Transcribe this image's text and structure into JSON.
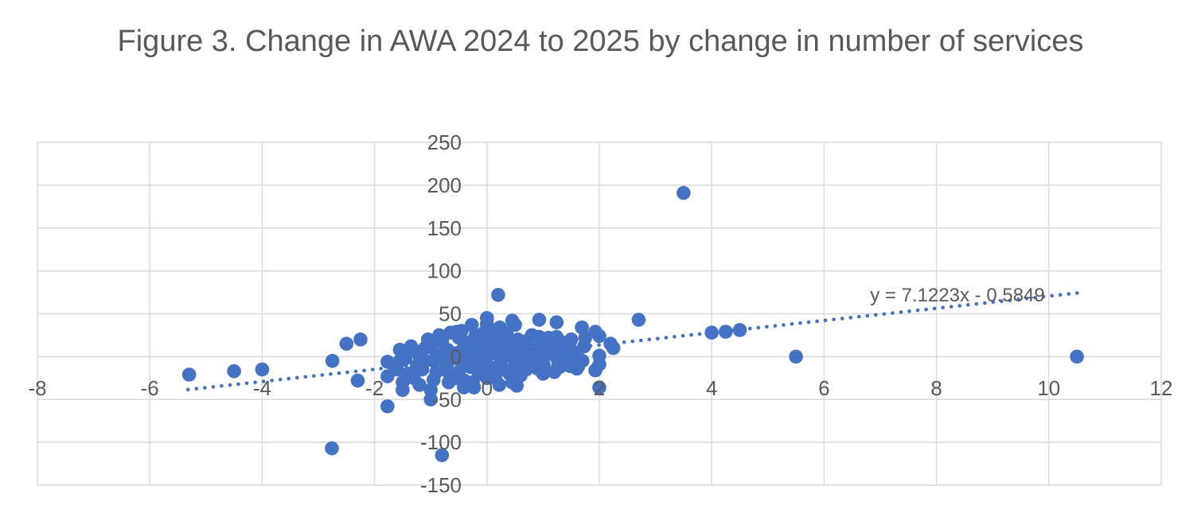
{
  "title": "Figure 3. Change in AWA 2024 to 2025 by change in number of services",
  "colors": {
    "marker": "#4472C4",
    "trendline": "#4472C4",
    "gridline": "#d9d9d9",
    "text": "#595959"
  },
  "chart_data": {
    "type": "scatter",
    "title": "Figure 3. Change in AWA 2024 to 2025 by change in number of services",
    "xlabel": "",
    "ylabel": "",
    "xlim": [
      -8,
      12
    ],
    "ylim": [
      -150,
      250
    ],
    "x_ticks": [
      -8,
      -6,
      -4,
      -2,
      0,
      2,
      4,
      6,
      8,
      10,
      12
    ],
    "y_ticks": [
      250,
      200,
      150,
      100,
      50,
      0,
      -50,
      -100,
      -150
    ],
    "grid": true,
    "legend": "none",
    "trendline": {
      "label": "y = 7.1223x - 0.5849",
      "slope": 7.1223,
      "intercept": -0.5849,
      "style": "dotted",
      "x_start": -5.32,
      "x_end": 10.55
    },
    "points": [
      [
        -5.3,
        -21
      ],
      [
        -4.5,
        -17
      ],
      [
        -4.0,
        -15
      ],
      [
        -2.76,
        -107
      ],
      [
        -0.8,
        -115
      ],
      [
        -2.75,
        -5
      ],
      [
        -2.5,
        15
      ],
      [
        -2.25,
        20
      ],
      [
        -2.3,
        -28
      ],
      [
        -1.77,
        -6
      ],
      [
        -1.77,
        -23
      ],
      [
        -1.77,
        -58
      ],
      [
        -1.55,
        -5
      ],
      [
        -1.5,
        -30
      ],
      [
        -1.5,
        -39
      ],
      [
        -1.25,
        6
      ],
      [
        -1.25,
        -11
      ],
      [
        -1.05,
        20
      ],
      [
        -1.0,
        -39
      ],
      [
        -1.0,
        -50
      ],
      [
        -0.68,
        -30
      ],
      [
        -0.54,
        29
      ],
      [
        -0.54,
        -25
      ],
      [
        -0.41,
        -36
      ],
      [
        -0.27,
        37
      ],
      [
        -0.23,
        -36
      ],
      [
        0,
        45
      ],
      [
        0,
        38
      ],
      [
        0.2,
        72
      ],
      [
        0.23,
        34
      ],
      [
        0.22,
        -33
      ],
      [
        0.45,
        42
      ],
      [
        0.5,
        37
      ],
      [
        0.45,
        -30
      ],
      [
        0.53,
        -34
      ],
      [
        0.69,
        -8
      ],
      [
        0.87,
        -10
      ],
      [
        0.93,
        43
      ],
      [
        1.01,
        -9
      ],
      [
        1.24,
        40
      ],
      [
        0.93,
        23
      ],
      [
        1.24,
        23
      ],
      [
        1.27,
        -10
      ],
      [
        1.44,
        5
      ],
      [
        1.44,
        -8
      ],
      [
        1.48,
        10
      ],
      [
        1.48,
        -11
      ],
      [
        1.62,
        -12
      ],
      [
        1.69,
        34
      ],
      [
        1.73,
        12
      ],
      [
        1.93,
        29
      ],
      [
        2.0,
        24
      ],
      [
        2.0,
        1
      ],
      [
        2.0,
        -9
      ],
      [
        1.93,
        -16
      ],
      [
        2.0,
        -36
      ],
      [
        2.2,
        15
      ],
      [
        2.25,
        10
      ],
      [
        2.7,
        43
      ],
      [
        3.5,
        191
      ],
      [
        4.0,
        28
      ],
      [
        4.25,
        29
      ],
      [
        4.5,
        31
      ],
      [
        5.5,
        0
      ],
      [
        10.5,
        0
      ],
      [
        -1.6,
        -15
      ],
      [
        -1.55,
        8
      ],
      [
        -1.4,
        -20
      ],
      [
        -1.45,
        -2
      ],
      [
        -1.35,
        12
      ],
      [
        -1.3,
        -25
      ],
      [
        -1.2,
        0
      ],
      [
        -1.15,
        -15
      ],
      [
        -1.1,
        10
      ],
      [
        -1.2,
        -33
      ],
      [
        -1.1,
        -5
      ],
      [
        -1.0,
        13
      ],
      [
        -0.95,
        -5
      ],
      [
        -0.9,
        3
      ],
      [
        -0.9,
        -18
      ],
      [
        -0.85,
        25
      ],
      [
        -0.95,
        -27
      ],
      [
        -0.8,
        18
      ],
      [
        -0.75,
        -3
      ],
      [
        -0.7,
        8
      ],
      [
        -0.75,
        -15
      ],
      [
        -0.65,
        28
      ],
      [
        -0.7,
        -8
      ],
      [
        -0.6,
        0
      ],
      [
        -0.65,
        -22
      ],
      [
        -0.5,
        22
      ],
      [
        -0.5,
        5
      ],
      [
        -0.45,
        -7
      ],
      [
        -0.5,
        -18
      ],
      [
        -0.4,
        12
      ],
      [
        -0.35,
        -2
      ],
      [
        -0.45,
        30
      ],
      [
        -0.4,
        -28
      ],
      [
        -0.3,
        17
      ],
      [
        -0.25,
        3
      ],
      [
        -0.3,
        -12
      ],
      [
        -0.2,
        25
      ],
      [
        -0.2,
        -5
      ],
      [
        -0.15,
        -20
      ],
      [
        -0.25,
        -30
      ],
      [
        -0.3,
        8
      ],
      [
        -0.1,
        13
      ],
      [
        -0.05,
        -2
      ],
      [
        0,
        22
      ],
      [
        0,
        5
      ],
      [
        0.05,
        -12
      ],
      [
        0,
        -25
      ],
      [
        0.1,
        30
      ],
      [
        0.05,
        8
      ],
      [
        -0.1,
        -8
      ],
      [
        0.1,
        -18
      ],
      [
        0,
        0
      ],
      [
        -0.05,
        28
      ],
      [
        0.15,
        15
      ],
      [
        0.2,
        2
      ],
      [
        0.25,
        -7
      ],
      [
        0.2,
        20
      ],
      [
        0.3,
        -15
      ],
      [
        0.25,
        9
      ],
      [
        0.15,
        -25
      ],
      [
        0.3,
        26
      ],
      [
        0.4,
        14
      ],
      [
        0.45,
        0
      ],
      [
        0.5,
        -10
      ],
      [
        0.4,
        -20
      ],
      [
        0.55,
        20
      ],
      [
        0.5,
        7
      ],
      [
        0.35,
        28
      ],
      [
        0.55,
        -3
      ],
      [
        0.6,
        12
      ],
      [
        0.65,
        -4
      ],
      [
        0.7,
        18
      ],
      [
        0.75,
        3
      ],
      [
        0.7,
        -15
      ],
      [
        0.8,
        25
      ],
      [
        0.6,
        -22
      ],
      [
        0.8,
        -2
      ],
      [
        0.9,
        10
      ],
      [
        0.95,
        -3
      ],
      [
        1.0,
        15
      ],
      [
        1.05,
        2
      ],
      [
        0.9,
        -14
      ],
      [
        1.1,
        22
      ],
      [
        1.0,
        -20
      ],
      [
        1.1,
        6
      ],
      [
        1.2,
        12
      ],
      [
        1.25,
        -2
      ],
      [
        1.3,
        18
      ],
      [
        1.35,
        5
      ],
      [
        1.3,
        -12
      ],
      [
        1.45,
        -3
      ],
      [
        1.2,
        -18
      ],
      [
        1.5,
        20
      ],
      [
        1.6,
        4
      ],
      [
        1.7,
        -5
      ],
      [
        1.75,
        22
      ],
      [
        1.6,
        -14
      ]
    ]
  }
}
